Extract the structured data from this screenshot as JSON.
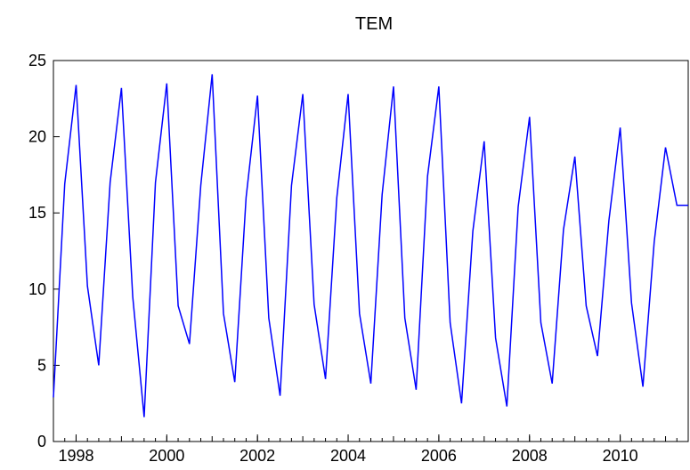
{
  "chart_data": {
    "type": "line",
    "title": "TEM",
    "xlabel": "",
    "ylabel": "",
    "xlim": [
      1997.5,
      2011.5
    ],
    "ylim": [
      0,
      25
    ],
    "yticks": [
      0,
      5,
      10,
      15,
      20,
      25
    ],
    "xticks": [
      1998,
      2000,
      2002,
      2004,
      2006,
      2008,
      2010
    ],
    "grid": false,
    "legend": "none",
    "colors": {
      "series": "#0000ff",
      "axis": "#000000"
    },
    "series": [
      {
        "x": [
          1997.5,
          1997.75,
          1998.0,
          1998.25,
          1998.5,
          1998.75,
          1999.0,
          1999.25,
          1999.5,
          1999.75,
          2000.0,
          2000.25,
          2000.5,
          2000.75,
          2001.0,
          2001.25,
          2001.5,
          2001.75,
          2002.0,
          2002.25,
          2002.5,
          2002.75,
          2003.0,
          2003.25,
          2003.5,
          2003.75,
          2004.0,
          2004.25,
          2004.5,
          2004.75,
          2005.0,
          2005.25,
          2005.5,
          2005.75,
          2006.0,
          2006.25,
          2006.5,
          2006.75,
          2007.0,
          2007.25,
          2007.5,
          2007.75,
          2008.0,
          2008.25,
          2008.5,
          2008.75,
          2009.0,
          2009.25,
          2009.5,
          2009.75,
          2010.0,
          2010.25,
          2010.5,
          2010.75,
          2011.0,
          2011.25,
          2011.5
        ],
        "values": [
          2.9,
          16.9,
          23.4,
          10.2,
          5.0,
          17.0,
          23.2,
          9.5,
          1.6,
          17.0,
          23.5,
          8.9,
          6.4,
          16.8,
          24.1,
          8.4,
          3.9,
          16.0,
          22.7,
          8.1,
          3.0,
          16.8,
          22.8,
          9.0,
          4.1,
          16.0,
          22.8,
          8.4,
          3.8,
          16.2,
          23.3,
          8.1,
          3.4,
          17.4,
          23.3,
          7.8,
          2.5,
          13.8,
          19.7,
          6.8,
          2.3,
          15.4,
          21.3,
          7.8,
          3.8,
          13.9,
          18.7,
          8.9,
          5.6,
          14.5,
          20.6,
          9.1,
          3.6,
          13.1,
          19.3,
          15.5,
          15.5
        ]
      }
    ]
  }
}
